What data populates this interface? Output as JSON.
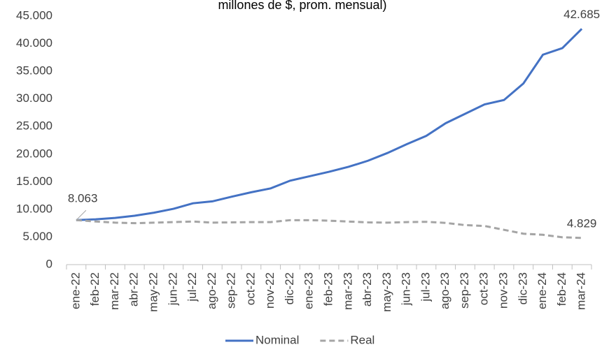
{
  "chart_data": {
    "type": "line",
    "title": "millones de $, prom. mensual)",
    "categories": [
      "ene-22",
      "feb-22",
      "mar-22",
      "abr-22",
      "may-22",
      "jun-22",
      "jul-22",
      "ago-22",
      "sep-22",
      "oct-22",
      "nov-22",
      "dic-22",
      "ene-23",
      "feb-23",
      "mar-23",
      "abr-23",
      "may-23",
      "jun-23",
      "jul-23",
      "ago-23",
      "sep-23",
      "oct-23",
      "nov-23",
      "dic-23",
      "ene-24",
      "feb-24",
      "mar-24"
    ],
    "series": [
      {
        "name": "Nominal",
        "color": "#4472c4",
        "dashed": false,
        "values": [
          8063,
          8200,
          8450,
          8850,
          9400,
          10100,
          11100,
          11450,
          12300,
          13100,
          13800,
          15200,
          16000,
          16800,
          17700,
          18800,
          20200,
          21800,
          23300,
          25600,
          27300,
          29000,
          29800,
          32800,
          38000,
          39200,
          42685
        ],
        "value_labels": [
          "8.063",
          null,
          null,
          null,
          null,
          null,
          null,
          null,
          null,
          null,
          null,
          null,
          null,
          null,
          null,
          null,
          null,
          null,
          null,
          null,
          null,
          null,
          null,
          null,
          null,
          null,
          "42.685"
        ]
      },
      {
        "name": "Real",
        "color": "#a5a5a5",
        "dashed": true,
        "values": [
          8063,
          7800,
          7600,
          7500,
          7600,
          7700,
          7800,
          7600,
          7650,
          7700,
          7700,
          8050,
          8050,
          7950,
          7800,
          7650,
          7600,
          7700,
          7750,
          7550,
          7150,
          7000,
          6300,
          5600,
          5400,
          4950,
          4829
        ],
        "value_labels": [
          null,
          null,
          null,
          null,
          null,
          null,
          null,
          null,
          null,
          null,
          null,
          null,
          null,
          null,
          null,
          null,
          null,
          null,
          null,
          null,
          null,
          null,
          null,
          null,
          null,
          null,
          "4.829"
        ]
      }
    ],
    "ylim": [
      0,
      45000
    ],
    "yticks": [
      0,
      {
        "value": 5000,
        "label": "5.000"
      },
      {
        "value": 10000,
        "label": "10.000"
      },
      {
        "value": 15000,
        "label": "15.000"
      },
      {
        "value": 20000,
        "label": "20.000"
      },
      {
        "value": 25000,
        "label": "25.000"
      },
      {
        "value": 30000,
        "label": "30.000"
      },
      {
        "value": 35000,
        "label": "35.000"
      },
      {
        "value": 40000,
        "label": "40.000"
      },
      {
        "value": 45000,
        "label": "45.000"
      }
    ],
    "grid": false,
    "legend": "bottom"
  }
}
